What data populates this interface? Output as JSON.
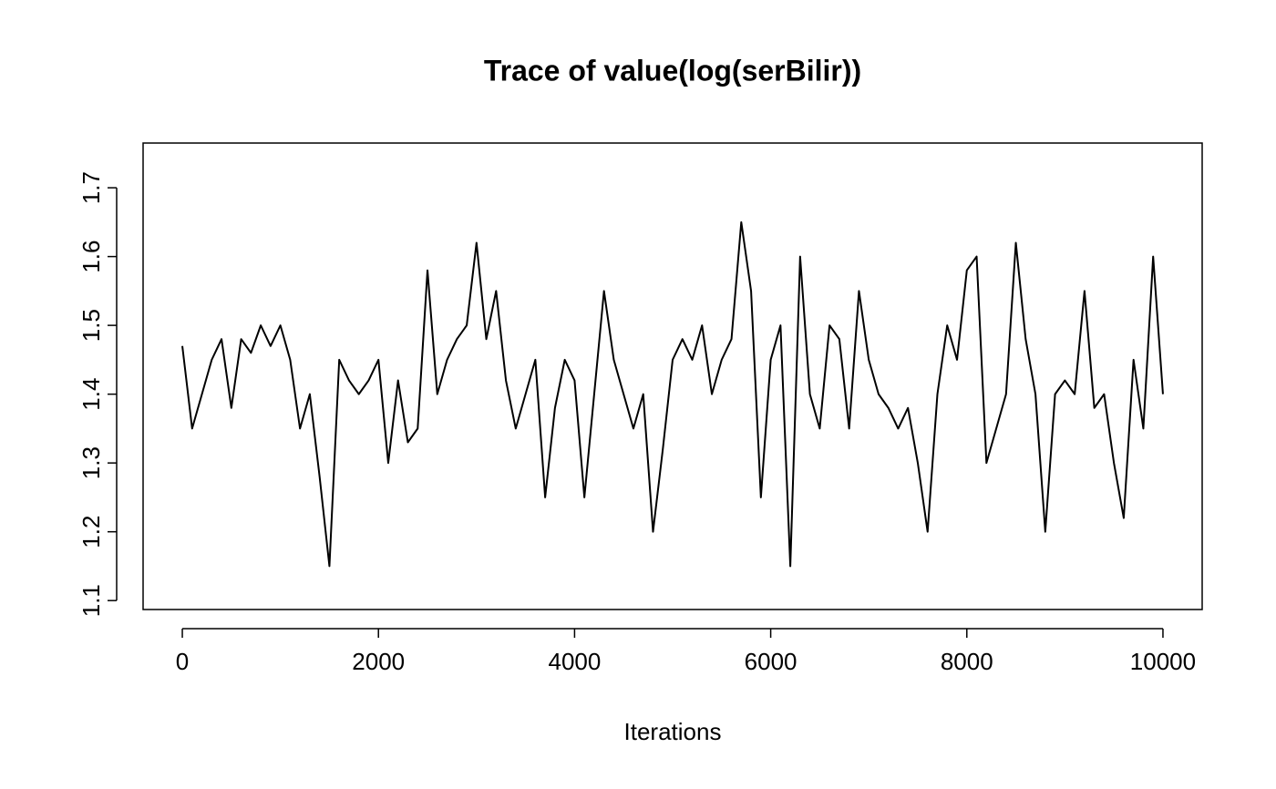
{
  "chart_data": {
    "type": "line",
    "title": "Trace of value(log(serBilir))",
    "x_label": "Iterations",
    "x": [
      0,
      100,
      200,
      300,
      400,
      500,
      600,
      700,
      800,
      900,
      1000,
      1100,
      1200,
      1300,
      1400,
      1500,
      1600,
      1700,
      1800,
      1900,
      2000,
      2100,
      2200,
      2300,
      2400,
      2500,
      2600,
      2700,
      2800,
      2900,
      3000,
      3100,
      3200,
      3300,
      3400,
      3500,
      3600,
      3700,
      3800,
      3900,
      4000,
      4100,
      4200,
      4300,
      4400,
      4500,
      4600,
      4700,
      4800,
      4900,
      5000,
      5100,
      5200,
      5300,
      5400,
      5500,
      5600,
      5700,
      5800,
      5900,
      6000,
      6100,
      6200,
      6300,
      6400,
      6500,
      6600,
      6700,
      6800,
      6900,
      7000,
      7100,
      7200,
      7300,
      7400,
      7500,
      7600,
      7700,
      7800,
      7900,
      8000,
      8100,
      8200,
      8300,
      8400,
      8500,
      8600,
      8700,
      8800,
      8900,
      9000,
      9100,
      9200,
      9300,
      9400,
      9500,
      9600,
      9700,
      9800,
      9900,
      10000
    ],
    "series": [
      {
        "color": "#000000",
        "values": [
          1.47,
          1.35,
          1.4,
          1.45,
          1.48,
          1.38,
          1.48,
          1.46,
          1.5,
          1.47,
          1.5,
          1.45,
          1.35,
          1.4,
          1.28,
          1.15,
          1.45,
          1.42,
          1.4,
          1.42,
          1.45,
          1.3,
          1.42,
          1.33,
          1.35,
          1.58,
          1.4,
          1.45,
          1.48,
          1.5,
          1.62,
          1.48,
          1.55,
          1.42,
          1.35,
          1.4,
          1.45,
          1.25,
          1.38,
          1.45,
          1.42,
          1.25,
          1.4,
          1.55,
          1.45,
          1.4,
          1.35,
          1.4,
          1.2,
          1.32,
          1.45,
          1.48,
          1.45,
          1.5,
          1.4,
          1.45,
          1.48,
          1.65,
          1.55,
          1.25,
          1.45,
          1.5,
          1.15,
          1.6,
          1.4,
          1.35,
          1.5,
          1.48,
          1.35,
          1.55,
          1.45,
          1.4,
          1.38,
          1.35,
          1.38,
          1.3,
          1.2,
          1.4,
          1.5,
          1.45,
          1.58,
          1.6,
          1.3,
          1.35,
          1.4,
          1.62,
          1.48,
          1.4,
          1.2,
          1.4,
          1.42,
          1.4,
          1.55,
          1.38,
          1.4,
          1.3,
          1.22,
          1.45,
          1.35,
          1.6,
          1.4
        ]
      }
    ],
    "xlim": [
      -400,
      10400
    ],
    "ylim": [
      1.087,
      1.765
    ],
    "xticks": [
      0,
      2000,
      4000,
      6000,
      8000,
      10000
    ],
    "yticks": [
      1.1,
      1.2,
      1.3,
      1.4,
      1.5,
      1.6,
      1.7
    ]
  }
}
